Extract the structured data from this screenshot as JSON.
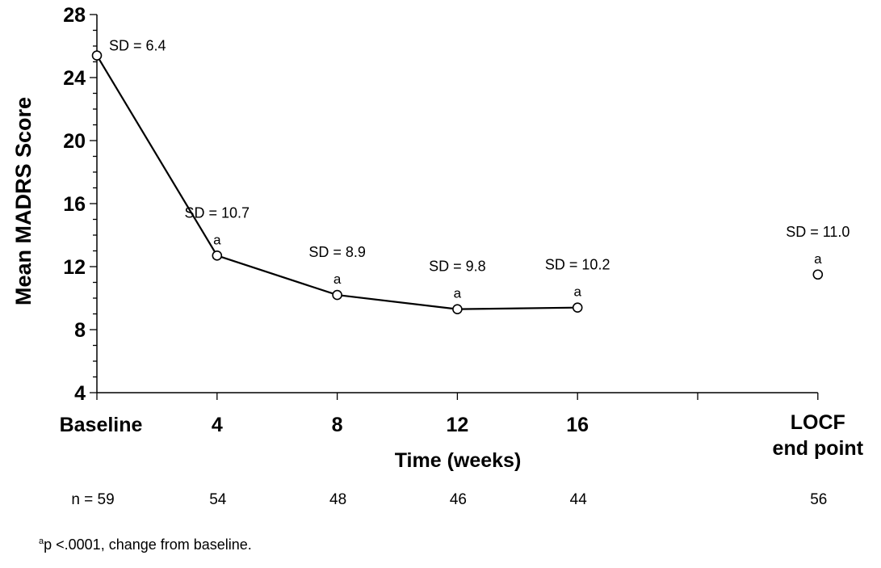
{
  "chart_data": {
    "type": "line",
    "ylabel": "Mean MADRS  Score",
    "xlabel": "Time (weeks)",
    "ylim": [
      4,
      28
    ],
    "yticks": [
      "4",
      "8",
      "12",
      "16",
      "20",
      "24",
      "28"
    ],
    "categories": [
      "Baseline",
      "4",
      "8",
      "12",
      "16",
      "",
      "LOCF end point"
    ],
    "series": [
      {
        "values": [
          25.4,
          12.7,
          10.2,
          9.3,
          9.4,
          null,
          null
        ]
      },
      {
        "values": [
          null,
          null,
          null,
          null,
          null,
          null,
          11.5
        ]
      }
    ],
    "sd_labels": [
      "SD = 6.4",
      "SD = 10.7",
      "SD = 8.9",
      "SD = 9.8",
      "SD = 10.2",
      "",
      "SD = 11.0"
    ],
    "significance_markers": [
      "",
      "a",
      "a",
      "a",
      "a",
      "",
      "a"
    ],
    "n_labels": [
      "n = 59",
      "54",
      "48",
      "46",
      "44",
      "",
      "56"
    ]
  },
  "footnote": {
    "marker": "a",
    "text": "p <.0001, change from baseline."
  }
}
